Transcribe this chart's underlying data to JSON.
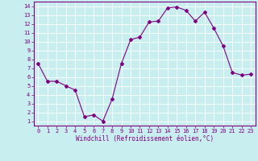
{
  "x": [
    0,
    1,
    2,
    3,
    4,
    5,
    6,
    7,
    8,
    9,
    10,
    11,
    12,
    13,
    14,
    15,
    16,
    17,
    18,
    19,
    20,
    21,
    22,
    23
  ],
  "y": [
    7.5,
    5.5,
    5.5,
    5.0,
    4.5,
    1.5,
    1.7,
    1.0,
    3.5,
    7.5,
    10.2,
    10.5,
    12.2,
    12.3,
    13.8,
    13.9,
    13.5,
    12.3,
    13.3,
    11.5,
    9.5,
    6.5,
    6.2,
    6.3
  ],
  "line_color": "#800080",
  "marker": "D",
  "marker_size": 2.0,
  "bg_color": "#c8eef0",
  "grid_color": "#ffffff",
  "xlabel": "Windchill (Refroidissement éolien,°C)",
  "xlabel_color": "#800080",
  "tick_color": "#800080",
  "ylim_min": 0.5,
  "ylim_max": 14.5,
  "xlim_min": -0.5,
  "xlim_max": 23.5,
  "yticks": [
    1,
    2,
    3,
    4,
    5,
    6,
    7,
    8,
    9,
    10,
    11,
    12,
    13,
    14
  ],
  "xticks": [
    0,
    1,
    2,
    3,
    4,
    5,
    6,
    7,
    8,
    9,
    10,
    11,
    12,
    13,
    14,
    15,
    16,
    17,
    18,
    19,
    20,
    21,
    22,
    23
  ],
  "spine_color": "#800080",
  "tick_fontsize": 5.0,
  "xlabel_fontsize": 5.5,
  "linewidth": 0.8
}
